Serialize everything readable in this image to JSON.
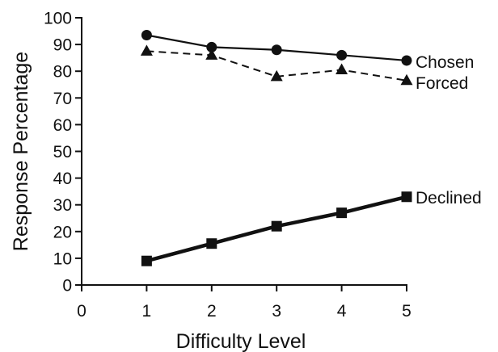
{
  "chart_data": {
    "type": "line",
    "xlabel": "Difficulty Level",
    "ylabel": "Response Percentage",
    "xlim": [
      0,
      5
    ],
    "ylim": [
      0,
      100
    ],
    "x_ticks": [
      "0",
      "1",
      "2",
      "3",
      "4",
      "5"
    ],
    "y_ticks": [
      "0",
      "10",
      "20",
      "30",
      "40",
      "50",
      "60",
      "70",
      "80",
      "90",
      "100"
    ],
    "grid": false,
    "x": [
      1,
      2,
      3,
      4,
      5
    ],
    "series": [
      {
        "name": "Chosen",
        "values": [
          93.5,
          89,
          88,
          86,
          84
        ],
        "marker": "circle",
        "line": "solid",
        "color": "#111111"
      },
      {
        "name": "Forced",
        "values": [
          87.5,
          86,
          78,
          80.5,
          76.5
        ],
        "marker": "triangle",
        "line": "dashed",
        "color": "#111111"
      },
      {
        "name": "Declined",
        "values": [
          9,
          15.5,
          22,
          27,
          33
        ],
        "marker": "square",
        "line": "solid-thick",
        "color": "#111111"
      }
    ]
  }
}
